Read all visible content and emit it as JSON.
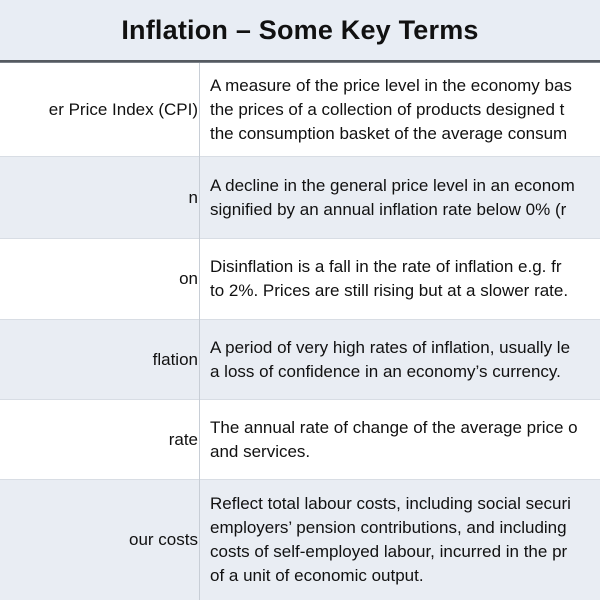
{
  "title": "Inflation – Some Key Terms",
  "rows": [
    {
      "term": "er Price Index (CPI)",
      "definition": "A measure of the price level in the economy bas\nthe prices of a collection of products designed t\nthe consumption basket of the average consum"
    },
    {
      "term": "n",
      "definition": "A decline in the general price level in an econom\nsignified by an annual inflation rate below 0% (r"
    },
    {
      "term": "on",
      "definition": "Disinflation is a fall in the rate of inflation e.g. fr\nto 2%. Prices are still rising but at a slower rate."
    },
    {
      "term": "flation",
      "definition": "A period of very high rates of inflation, usually le\na loss of confidence in an economy’s currency."
    },
    {
      "term": "rate",
      "definition": "The annual rate of change of the average price o\nand services."
    },
    {
      "term": "our costs",
      "definition": "Reflect total labour costs, including social securi\nemployers’ pension contributions, and including\ncosts of self-employed labour, incurred in the pr\nof a unit of economic output."
    }
  ]
}
